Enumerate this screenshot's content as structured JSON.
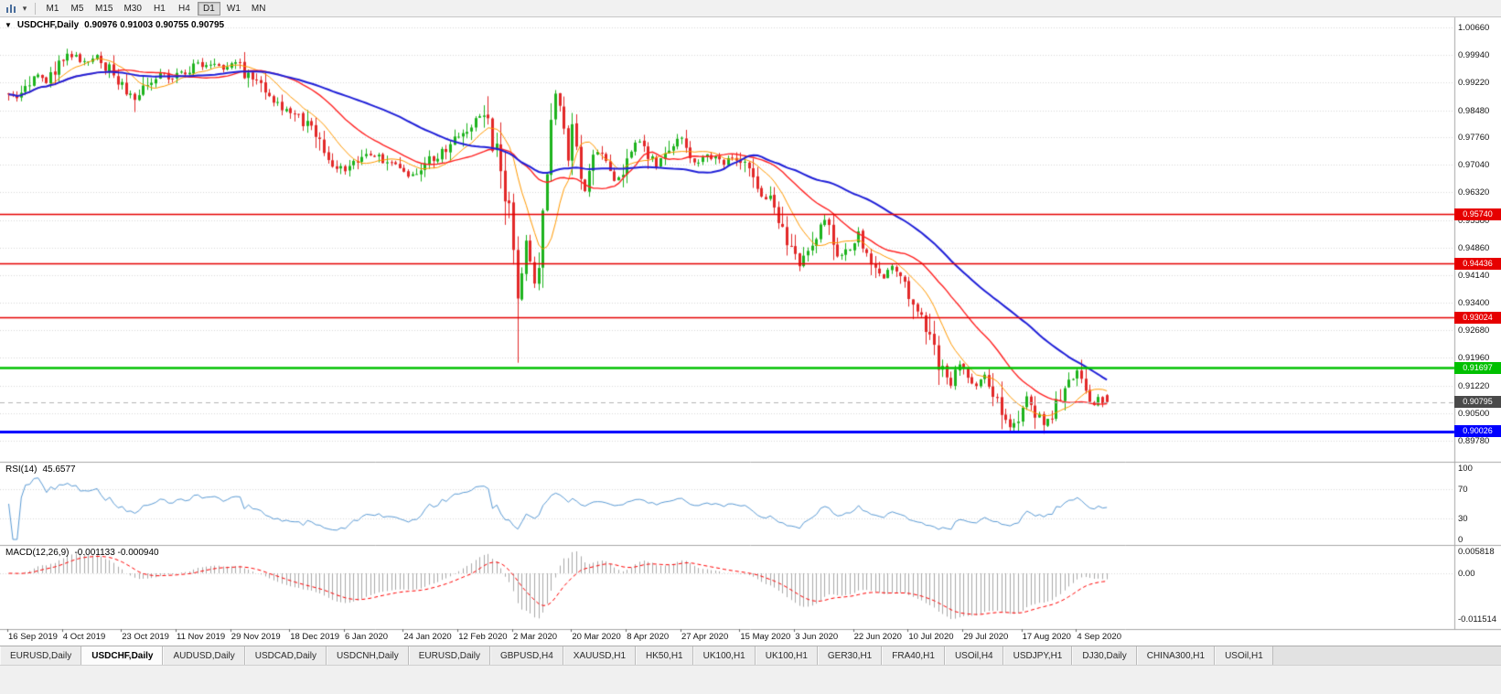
{
  "toolbar": {
    "chart_type_icon": "bar-chart-icon",
    "dropdown_icon": "chevron-down-icon",
    "timeframes": [
      "M1",
      "M5",
      "M15",
      "M30",
      "H1",
      "H4",
      "D1",
      "W1",
      "MN"
    ],
    "active_timeframe": "D1"
  },
  "chart": {
    "collapse_arrow": "▼",
    "title": "USDCHF,Daily",
    "ohlc": "0.90976 0.91003 0.90755 0.90795"
  },
  "rsi": {
    "label": "RSI(14)",
    "value": "45.6577",
    "axis_ticks": [
      "100",
      "70",
      "30",
      "0"
    ],
    "line_color": "#5b9bd5"
  },
  "macd": {
    "label": "MACD(12,26,9)",
    "values": "-0.001133 -0.000940",
    "axis_ticks": [
      "0.005818",
      "0.00",
      "-0.011514"
    ],
    "histogram_color": "#a9a9a9",
    "signal_color": "#ff0000"
  },
  "price_axis_ticks": [
    "1.00660",
    "0.99940",
    "0.99220",
    "0.98480",
    "0.97760",
    "0.97040",
    "0.96320",
    "0.95580",
    "0.94860",
    "0.94140",
    "0.93400",
    "0.92680",
    "0.91960",
    "0.91220",
    "0.90500",
    "0.89780"
  ],
  "date_axis_labels": [
    "16 Sep 2019",
    "4 Oct 2019",
    "23 Oct 2019",
    "11 Nov 2019",
    "29 Nov 2019",
    "18 Dec 2019",
    "6 Jan 2020",
    "24 Jan 2020",
    "12 Feb 2020",
    "2 Mar 2020",
    "20 Mar 2020",
    "8 Apr 2020",
    "27 Apr 2020",
    "15 May 2020",
    "3 Jun 2020",
    "22 Jun 2020",
    "10 Jul 2020",
    "29 Jul 2020",
    "17 Aug 2020",
    "4 Sep 2020"
  ],
  "current_price": {
    "label": "0.90795",
    "value": 0.90795,
    "tag_color": "#4a4a4a"
  },
  "tabs": {
    "active_index": 1,
    "items": [
      "EURUSD,Daily",
      "USDCHF,Daily",
      "AUDUSD,Daily",
      "USDCAD,Daily",
      "USDCNH,Daily",
      "EURUSD,Daily",
      "GBPUSD,H4",
      "XAUUSD,H1",
      "HK50,H1",
      "UK100,H1",
      "UK100,H1",
      "GER30,H1",
      "FRA40,H1",
      "USOil,H4",
      "USDJPY,H1",
      "DJ30,Daily",
      "CHINA300,H1",
      "USOil,H1"
    ]
  },
  "chart_data": {
    "type": "candlestick",
    "symbol": "USDCHF",
    "period": "Daily",
    "x_range": [
      "16 Sep 2019",
      "15 Sep 2020"
    ],
    "y_axis": {
      "top_tick": 1.0066,
      "tick_step": 0.0072,
      "num_ticks": 16
    },
    "n_candles": 262,
    "close_path_anchors": [
      [
        0,
        0.99
      ],
      [
        2,
        0.9878
      ],
      [
        4,
        0.9905
      ],
      [
        7,
        0.9942
      ],
      [
        9,
        0.9921
      ],
      [
        12,
        0.9965
      ],
      [
        15,
        0.9995
      ],
      [
        18,
        0.9978
      ],
      [
        21,
        0.9992
      ],
      [
        24,
        0.9955
      ],
      [
        27,
        0.9915
      ],
      [
        30,
        0.988
      ],
      [
        33,
        0.9925
      ],
      [
        36,
        0.9945
      ],
      [
        39,
        0.993
      ],
      [
        42,
        0.9952
      ],
      [
        45,
        0.9968
      ],
      [
        48,
        0.9975
      ],
      [
        51,
        0.9958
      ],
      [
        54,
        0.9975
      ],
      [
        57,
        0.9935
      ],
      [
        60,
        0.9905
      ],
      [
        63,
        0.987
      ],
      [
        66,
        0.9848
      ],
      [
        69,
        0.983
      ],
      [
        72,
        0.979
      ],
      [
        75,
        0.9735
      ],
      [
        78,
        0.97
      ],
      [
        80,
        0.9682
      ],
      [
        83,
        0.9712
      ],
      [
        86,
        0.973
      ],
      [
        89,
        0.9718
      ],
      [
        92,
        0.9695
      ],
      [
        95,
        0.9678
      ],
      [
        98,
        0.97
      ],
      [
        101,
        0.9725
      ],
      [
        104,
        0.9748
      ],
      [
        107,
        0.9775
      ],
      [
        110,
        0.9815
      ],
      [
        112,
        0.984
      ],
      [
        114,
        0.98
      ],
      [
        116,
        0.973
      ],
      [
        118,
        0.964
      ],
      [
        119,
        0.958
      ],
      [
        120,
        0.948
      ],
      [
        121,
        0.933
      ],
      [
        122,
        0.942
      ],
      [
        123,
        0.9485
      ],
      [
        124,
        0.9445
      ],
      [
        125,
        0.939
      ],
      [
        126,
        0.946
      ],
      [
        127,
        0.956
      ],
      [
        128,
        0.97
      ],
      [
        129,
        0.982
      ],
      [
        130,
        0.988
      ],
      [
        131,
        0.9855
      ],
      [
        132,
        0.979
      ],
      [
        133,
        0.9745
      ],
      [
        134,
        0.9785
      ],
      [
        135,
        0.973
      ],
      [
        136,
        0.968
      ],
      [
        137,
        0.963
      ],
      [
        138,
        0.9675
      ],
      [
        139,
        0.972
      ],
      [
        140,
        0.9745
      ],
      [
        142,
        0.9705
      ],
      [
        144,
        0.9665
      ],
      [
        146,
        0.97
      ],
      [
        148,
        0.974
      ],
      [
        150,
        0.9765
      ],
      [
        152,
        0.973
      ],
      [
        154,
        0.97
      ],
      [
        156,
        0.973
      ],
      [
        158,
        0.976
      ],
      [
        160,
        0.9775
      ],
      [
        162,
        0.974
      ],
      [
        164,
        0.9705
      ],
      [
        166,
        0.973
      ],
      [
        168,
        0.972
      ],
      [
        170,
        0.9705
      ],
      [
        172,
        0.9725
      ],
      [
        174,
        0.971
      ],
      [
        176,
        0.968
      ],
      [
        178,
        0.964
      ],
      [
        180,
        0.962
      ],
      [
        182,
        0.9605
      ],
      [
        184,
        0.955
      ],
      [
        186,
        0.948
      ],
      [
        188,
        0.9435
      ],
      [
        190,
        0.948
      ],
      [
        192,
        0.952
      ],
      [
        194,
        0.9555
      ],
      [
        196,
        0.95
      ],
      [
        198,
        0.946
      ],
      [
        200,
        0.9495
      ],
      [
        202,
        0.952
      ],
      [
        204,
        0.948
      ],
      [
        206,
        0.944
      ],
      [
        208,
        0.941
      ],
      [
        210,
        0.944
      ],
      [
        212,
        0.94
      ],
      [
        214,
        0.937
      ],
      [
        216,
        0.933
      ],
      [
        218,
        0.927
      ],
      [
        220,
        0.921
      ],
      [
        222,
        0.916
      ],
      [
        224,
        0.913
      ],
      [
        226,
        0.918
      ],
      [
        228,
        0.9155
      ],
      [
        230,
        0.912
      ],
      [
        232,
        0.915
      ],
      [
        234,
        0.911
      ],
      [
        236,
        0.906
      ],
      [
        238,
        0.902
      ],
      [
        240,
        0.9045
      ],
      [
        242,
        0.909
      ],
      [
        244,
        0.906
      ],
      [
        246,
        0.9015
      ],
      [
        248,
        0.906
      ],
      [
        250,
        0.91
      ],
      [
        252,
        0.9135
      ],
      [
        254,
        0.915
      ],
      [
        256,
        0.909
      ],
      [
        258,
        0.907
      ],
      [
        259,
        0.9095
      ],
      [
        260,
        0.9082
      ],
      [
        261,
        0.90795
      ]
    ],
    "wick_overrides": [
      {
        "i": 15,
        "high": 1.0004
      },
      {
        "i": 30,
        "low": 0.9843
      },
      {
        "i": 121,
        "low": 0.9183
      },
      {
        "i": 130,
        "high": 0.9901
      },
      {
        "i": 188,
        "low": 0.9424
      },
      {
        "i": 238,
        "low": 0.8997
      },
      {
        "i": 246,
        "low": 0.8996
      },
      {
        "i": 254,
        "high": 0.9168
      }
    ],
    "last_candle": {
      "o": 0.90976,
      "h": 0.91003,
      "l": 0.90755,
      "c": 0.90795
    },
    "candle_colors": {
      "up": "#1db31d",
      "down": "#e22828"
    },
    "moving_averages": [
      {
        "period": 10,
        "color": "#ff9900",
        "width": 1
      },
      {
        "period": 25,
        "color": "#ff2222",
        "width": 1.4
      },
      {
        "period": 50,
        "color": "#2020d8",
        "width": 2
      }
    ],
    "horizontal_lines": [
      {
        "price": 0.9574,
        "label": "0.95740",
        "color": "#e60000",
        "width": 1.5
      },
      {
        "price": 0.94436,
        "label": "0.94436",
        "color": "#e60000",
        "width": 1.5
      },
      {
        "price": 0.93024,
        "label": "0.93024",
        "color": "#e60000",
        "width": 1.5
      },
      {
        "price": 0.91697,
        "label": "0.91697",
        "color": "#00c000",
        "width": 2.5
      },
      {
        "price": 0.90026,
        "label": "0.90026",
        "color": "#0000ff",
        "width": 3
      }
    ],
    "indicators": {
      "rsi": {
        "period": 14,
        "current": 45.6577
      },
      "macd": {
        "fast": 12,
        "slow": 26,
        "signal": 9,
        "current": -0.001133,
        "signal_current": -0.00094
      }
    }
  }
}
